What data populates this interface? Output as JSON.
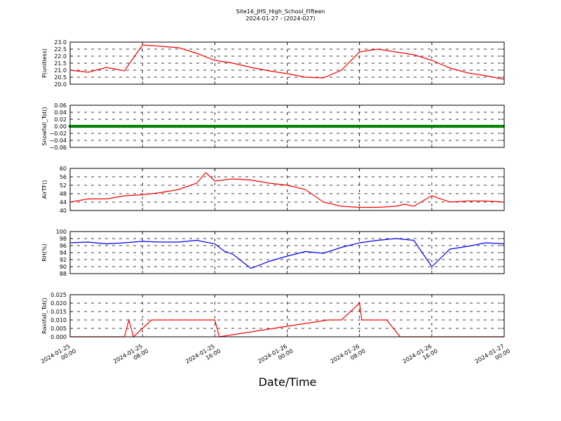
{
  "figure": {
    "title_line1": "Site16_JHS_High_School_Fifteen",
    "title_line2": "2024-01-27 - (2024-027)",
    "xlabel": "Date/Time"
  },
  "chart_data": [
    {
      "type": "line",
      "ylabel": "P(unitless)",
      "ylim": [
        20.0,
        23.0
      ],
      "yticks": [
        "20.0",
        "20.5",
        "21.0",
        "21.5",
        "22.0",
        "22.5",
        "23.0"
      ],
      "color": "#ff0000",
      "grid": true,
      "x": [
        "2024-01-25 00:00",
        "2024-01-25 02:00",
        "2024-01-25 04:00",
        "2024-01-25 06:00",
        "2024-01-25 08:00",
        "2024-01-25 10:00",
        "2024-01-25 12:00",
        "2024-01-25 14:00",
        "2024-01-25 16:00",
        "2024-01-25 18:00",
        "2024-01-25 20:00",
        "2024-01-25 22:00",
        "2024-01-26 00:00",
        "2024-01-26 02:00",
        "2024-01-26 04:00",
        "2024-01-26 06:00",
        "2024-01-26 08:00",
        "2024-01-26 10:00",
        "2024-01-26 12:00",
        "2024-01-26 14:00",
        "2024-01-26 16:00",
        "2024-01-26 18:00",
        "2024-01-26 20:00",
        "2024-01-26 22:00",
        "2024-01-27 00:00"
      ],
      "values": [
        21.0,
        20.85,
        21.2,
        20.95,
        22.8,
        22.7,
        22.6,
        22.2,
        21.7,
        21.5,
        21.2,
        20.95,
        20.75,
        20.5,
        20.45,
        21.0,
        22.3,
        22.5,
        22.3,
        22.1,
        21.7,
        21.15,
        20.8,
        20.6,
        20.35
      ]
    },
    {
      "type": "line",
      "ylabel": "Snowfall_Tot()",
      "ylim": [
        -0.06,
        0.06
      ],
      "yticks": [
        "−0.06",
        "−0.04",
        "−0.02",
        "0.00",
        "0.02",
        "0.04",
        "0.06"
      ],
      "color": "#008000",
      "grid": true,
      "marker": "circle",
      "x": [
        "2024-01-25 00:00",
        "2024-01-27 00:00"
      ],
      "values": [
        0.0,
        0.0
      ]
    },
    {
      "type": "line",
      "ylabel": "AirTF()",
      "ylim": [
        40,
        60
      ],
      "yticks": [
        "40",
        "44",
        "48",
        "52",
        "56",
        "60"
      ],
      "color": "#ff0000",
      "grid": true,
      "x": [
        "2024-01-25 00:00",
        "2024-01-25 02:00",
        "2024-01-25 04:00",
        "2024-01-25 06:00",
        "2024-01-25 08:00",
        "2024-01-25 10:00",
        "2024-01-25 12:00",
        "2024-01-25 14:00",
        "2024-01-25 15:00",
        "2024-01-25 16:00",
        "2024-01-25 18:00",
        "2024-01-25 20:00",
        "2024-01-25 22:00",
        "2024-01-26 00:00",
        "2024-01-26 02:00",
        "2024-01-26 04:00",
        "2024-01-26 06:00",
        "2024-01-26 08:00",
        "2024-01-26 10:00",
        "2024-01-26 12:00",
        "2024-01-26 13:00",
        "2024-01-26 14:00",
        "2024-01-26 16:00",
        "2024-01-26 18:00",
        "2024-01-26 20:00",
        "2024-01-26 22:00",
        "2024-01-27 00:00"
      ],
      "values": [
        44,
        45.5,
        45.5,
        47,
        47.5,
        48.5,
        50,
        53,
        58,
        54,
        55,
        54.5,
        53,
        52,
        50,
        44,
        42,
        41.5,
        41.5,
        42,
        43,
        42,
        47,
        44,
        44.5,
        44.5,
        44
      ]
    },
    {
      "type": "line",
      "ylabel": "RH(%)",
      "ylim": [
        88,
        100
      ],
      "yticks": [
        "88",
        "90",
        "92",
        "94",
        "96",
        "98",
        "100"
      ],
      "color": "#0000ff",
      "grid": true,
      "x": [
        "2024-01-25 00:00",
        "2024-01-25 02:00",
        "2024-01-25 04:00",
        "2024-01-25 06:00",
        "2024-01-25 08:00",
        "2024-01-25 10:00",
        "2024-01-25 12:00",
        "2024-01-25 14:00",
        "2024-01-25 16:00",
        "2024-01-25 17:00",
        "2024-01-25 18:00",
        "2024-01-25 20:00",
        "2024-01-25 22:00",
        "2024-01-26 00:00",
        "2024-01-26 02:00",
        "2024-01-26 04:00",
        "2024-01-26 06:00",
        "2024-01-26 08:00",
        "2024-01-26 10:00",
        "2024-01-26 12:00",
        "2024-01-26 14:00",
        "2024-01-26 16:00",
        "2024-01-26 18:00",
        "2024-01-26 20:00",
        "2024-01-26 22:00",
        "2024-01-27 00:00"
      ],
      "values": [
        96.8,
        97,
        96.5,
        96.8,
        97.2,
        97,
        97,
        97.5,
        96.5,
        94.5,
        93.5,
        89.5,
        91.5,
        93,
        94.3,
        93.8,
        95.5,
        96.8,
        97.5,
        98,
        97.5,
        90,
        95,
        95.8,
        96.8,
        96.5
      ]
    },
    {
      "type": "line",
      "ylabel": "Rainfall_Tot()",
      "ylim": [
        0.0,
        0.025
      ],
      "yticks": [
        "0.000",
        "0.005",
        "0.010",
        "0.015",
        "0.020",
        "0.025"
      ],
      "color": "#ff0000",
      "grid": true,
      "x": [
        "2024-01-25 00:00",
        "2024-01-25 06:00",
        "2024-01-25 06:30",
        "2024-01-25 07:00",
        "2024-01-25 09:00",
        "2024-01-25 10:00",
        "2024-01-25 13:00",
        "2024-01-25 16:00",
        "2024-01-25 16:30",
        "2024-01-26 04:30",
        "2024-01-26 05:00",
        "2024-01-26 06:00",
        "2024-01-26 08:00",
        "2024-01-26 08:15",
        "2024-01-26 09:00",
        "2024-01-26 11:00",
        "2024-01-26 12:30",
        "2024-01-27 00:00"
      ],
      "values": [
        0,
        0,
        0.01,
        0,
        0.01,
        0.01,
        0.01,
        0.01,
        0,
        0.01,
        0.01,
        0.01,
        0.02,
        0.01,
        0.01,
        0.01,
        0,
        0
      ]
    }
  ],
  "xaxis": {
    "range": [
      "2024-01-25 00:00",
      "2024-01-27 00:00"
    ],
    "tick_labels": [
      [
        "2024-01-25",
        "00:00"
      ],
      [
        "2024-01-25",
        "08:00"
      ],
      [
        "2024-01-25",
        "16:00"
      ],
      [
        "2024-01-26",
        "00:00"
      ],
      [
        "2024-01-26",
        "08:00"
      ],
      [
        "2024-01-26",
        "16:00"
      ],
      [
        "2024-01-27",
        "00:00"
      ]
    ]
  }
}
